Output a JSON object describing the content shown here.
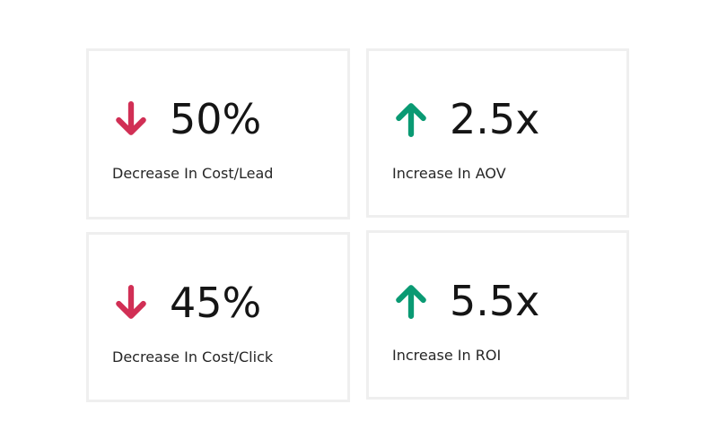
{
  "colors": {
    "down": "#d12f55",
    "up": "#0a9a73"
  },
  "stats": [
    {
      "value": "50%",
      "label": "Decrease In Cost/Lead",
      "direction": "down",
      "icon": "arrow-down-icon"
    },
    {
      "value": "2.5x",
      "label": "Increase In AOV",
      "direction": "up",
      "icon": "arrow-up-icon"
    },
    {
      "value": "45%",
      "label": "Decrease In Cost/Click",
      "direction": "down",
      "icon": "arrow-down-icon"
    },
    {
      "value": "5.5x",
      "label": "Increase In ROI",
      "direction": "up",
      "icon": "arrow-up-icon"
    }
  ]
}
